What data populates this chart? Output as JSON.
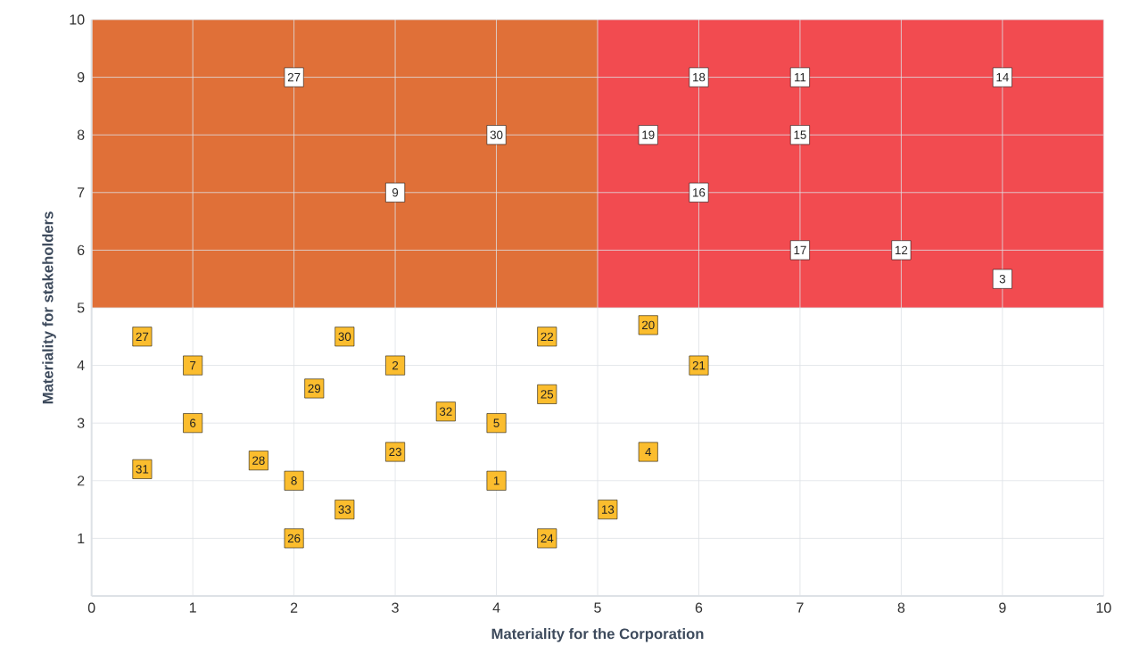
{
  "chart_data": {
    "type": "scatter",
    "xlabel": "Materiality for the Corporation",
    "ylabel": "Materiality for stakeholders",
    "xlim": [
      0,
      10
    ],
    "ylim": [
      0,
      10
    ],
    "xticks": [
      0,
      1,
      2,
      3,
      4,
      5,
      6,
      7,
      8,
      9,
      10
    ],
    "yticks": [
      1,
      2,
      3,
      4,
      5,
      6,
      7,
      8,
      9,
      10
    ],
    "grid": true,
    "marker": "square",
    "bands": [
      {
        "axis": "x",
        "from": 0,
        "to": 5,
        "color": "#e07038"
      },
      {
        "axis": "x",
        "from": 5,
        "to": 10,
        "color": "#f24b50"
      }
    ],
    "series": [
      {
        "color": "#ffffff",
        "x": [
          2,
          4,
          3,
          6,
          7,
          9,
          5.5,
          7,
          6,
          7,
          8,
          9
        ],
        "values": [
          9,
          8,
          7,
          9,
          9,
          9,
          8,
          8,
          7,
          6,
          6,
          5.5
        ]
      },
      {
        "color": "#fbbd2e",
        "x": [
          0.5,
          1,
          2.5,
          3,
          4.5,
          5.5,
          6,
          2.2,
          4.5,
          3.5,
          1,
          4,
          1.65,
          3,
          5.5,
          0.5,
          2,
          4,
          2.5,
          5.1,
          2,
          4.5
        ],
        "values": [
          4.5,
          4,
          4.5,
          4,
          4.5,
          4.7,
          4,
          3.6,
          3.5,
          3.2,
          3,
          3,
          2.35,
          2.5,
          2.5,
          2.2,
          2,
          2,
          1.5,
          1.5,
          1,
          1
        ]
      }
    ],
    "annotations": [
      {
        "text": "27",
        "x": 2,
        "y": 9
      },
      {
        "text": "30",
        "x": 4,
        "y": 8
      },
      {
        "text": "9",
        "x": 3,
        "y": 7
      },
      {
        "text": "18",
        "x": 6,
        "y": 9
      },
      {
        "text": "11",
        "x": 7,
        "y": 9
      },
      {
        "text": "14",
        "x": 9,
        "y": 9
      },
      {
        "text": "19",
        "x": 5.5,
        "y": 8
      },
      {
        "text": "15",
        "x": 7,
        "y": 8
      },
      {
        "text": "16",
        "x": 6,
        "y": 7
      },
      {
        "text": "17",
        "x": 7,
        "y": 6
      },
      {
        "text": "12",
        "x": 8,
        "y": 6
      },
      {
        "text": "3",
        "x": 9,
        "y": 5.5
      },
      {
        "text": "27",
        "x": 0.5,
        "y": 4.5
      },
      {
        "text": "7",
        "x": 1,
        "y": 4
      },
      {
        "text": "30",
        "x": 2.5,
        "y": 4.5
      },
      {
        "text": "2",
        "x": 3,
        "y": 4
      },
      {
        "text": "22",
        "x": 4.5,
        "y": 4.5
      },
      {
        "text": "20",
        "x": 5.5,
        "y": 4.7
      },
      {
        "text": "21",
        "x": 6,
        "y": 4
      },
      {
        "text": "29",
        "x": 2.2,
        "y": 3.6
      },
      {
        "text": "25",
        "x": 4.5,
        "y": 3.5
      },
      {
        "text": "32",
        "x": 3.5,
        "y": 3.2
      },
      {
        "text": "6",
        "x": 1,
        "y": 3
      },
      {
        "text": "5",
        "x": 4,
        "y": 3
      },
      {
        "text": "28",
        "x": 1.65,
        "y": 2.35
      },
      {
        "text": "23",
        "x": 3,
        "y": 2.5
      },
      {
        "text": "4",
        "x": 5.5,
        "y": 2.5
      },
      {
        "text": "31",
        "x": 0.5,
        "y": 2.2
      },
      {
        "text": "8",
        "x": 2,
        "y": 2
      },
      {
        "text": "1",
        "x": 4,
        "y": 2
      },
      {
        "text": "33",
        "x": 2.5,
        "y": 1.5
      },
      {
        "text": "13",
        "x": 5.1,
        "y": 1.5
      },
      {
        "text": "26",
        "x": 2,
        "y": 1
      },
      {
        "text": "24",
        "x": 4.5,
        "y": 1
      }
    ]
  }
}
